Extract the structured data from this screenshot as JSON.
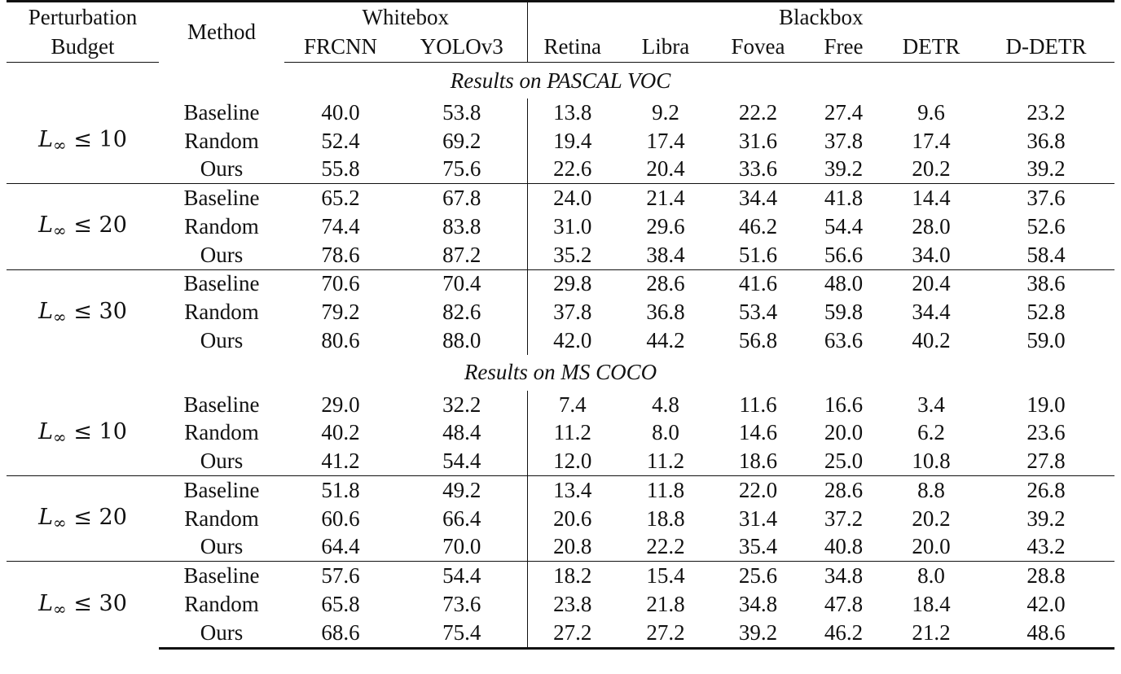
{
  "header": {
    "budget_line1": "Perturbation",
    "budget_line2": "Budget",
    "method": "Method",
    "whitebox": "Whitebox",
    "blackbox": "Blackbox",
    "columns": [
      "FRCNN",
      "YOLOv3",
      "Retina",
      "Libra",
      "Fovea",
      "Free",
      "DETR",
      "D-DETR"
    ]
  },
  "sections": [
    {
      "title": "Results on PASCAL VOC",
      "groups": [
        {
          "budget": "10",
          "rows": [
            {
              "method": "Baseline",
              "values": [
                "40.0",
                "53.8",
                "13.8",
                "9.2",
                "22.2",
                "27.4",
                "9.6",
                "23.2"
              ],
              "bold": [
                false,
                false,
                false,
                false,
                false,
                false,
                false,
                false
              ]
            },
            {
              "method": "Random",
              "values": [
                "52.4",
                "69.2",
                "19.4",
                "17.4",
                "31.6",
                "37.8",
                "17.4",
                "36.8"
              ],
              "bold": [
                false,
                false,
                false,
                false,
                false,
                false,
                false,
                false
              ]
            },
            {
              "method": "Ours",
              "values": [
                "55.8",
                "75.6",
                "22.6",
                "20.4",
                "33.6",
                "39.2",
                "20.2",
                "39.2"
              ],
              "bold": [
                true,
                true,
                true,
                true,
                true,
                true,
                true,
                true
              ]
            }
          ]
        },
        {
          "budget": "20",
          "rows": [
            {
              "method": "Baseline",
              "values": [
                "65.2",
                "67.8",
                "24.0",
                "21.4",
                "34.4",
                "41.8",
                "14.4",
                "37.6"
              ],
              "bold": [
                false,
                false,
                false,
                false,
                false,
                false,
                false,
                false
              ]
            },
            {
              "method": "Random",
              "values": [
                "74.4",
                "83.8",
                "31.0",
                "29.6",
                "46.2",
                "54.4",
                "28.0",
                "52.6"
              ],
              "bold": [
                false,
                false,
                false,
                false,
                false,
                false,
                false,
                false
              ]
            },
            {
              "method": "Ours",
              "values": [
                "78.6",
                "87.2",
                "35.2",
                "38.4",
                "51.6",
                "56.6",
                "34.0",
                "58.4"
              ],
              "bold": [
                true,
                true,
                true,
                true,
                true,
                true,
                true,
                true
              ]
            }
          ]
        },
        {
          "budget": "30",
          "rows": [
            {
              "method": "Baseline",
              "values": [
                "70.6",
                "70.4",
                "29.8",
                "28.6",
                "41.6",
                "48.0",
                "20.4",
                "38.6"
              ],
              "bold": [
                false,
                false,
                false,
                false,
                false,
                false,
                false,
                false
              ]
            },
            {
              "method": "Random",
              "values": [
                "79.2",
                "82.6",
                "37.8",
                "36.8",
                "53.4",
                "59.8",
                "34.4",
                "52.8"
              ],
              "bold": [
                false,
                false,
                false,
                false,
                false,
                false,
                false,
                false
              ]
            },
            {
              "method": "Ours",
              "values": [
                "80.6",
                "88.0",
                "42.0",
                "44.2",
                "56.8",
                "63.6",
                "40.2",
                "59.0"
              ],
              "bold": [
                true,
                true,
                true,
                true,
                true,
                true,
                true,
                true
              ]
            }
          ]
        }
      ]
    },
    {
      "title": "Results on MS COCO",
      "groups": [
        {
          "budget": "10",
          "rows": [
            {
              "method": "Baseline",
              "values": [
                "29.0",
                "32.2",
                "7.4",
                "4.8",
                "11.6",
                "16.6",
                "3.4",
                "19.0"
              ],
              "bold": [
                false,
                false,
                false,
                false,
                false,
                false,
                false,
                false
              ]
            },
            {
              "method": "Random",
              "values": [
                "40.2",
                "48.4",
                "11.2",
                "8.0",
                "14.6",
                "20.0",
                "6.2",
                "23.6"
              ],
              "bold": [
                false,
                false,
                false,
                false,
                false,
                false,
                false,
                false
              ]
            },
            {
              "method": "Ours",
              "values": [
                "41.2",
                "54.4",
                "12.0",
                "11.2",
                "18.6",
                "25.0",
                "10.8",
                "27.8"
              ],
              "bold": [
                true,
                true,
                true,
                true,
                true,
                true,
                true,
                true
              ]
            }
          ]
        },
        {
          "budget": "20",
          "rows": [
            {
              "method": "Baseline",
              "values": [
                "51.8",
                "49.2",
                "13.4",
                "11.8",
                "22.0",
                "28.6",
                "8.8",
                "26.8"
              ],
              "bold": [
                false,
                false,
                false,
                false,
                false,
                false,
                false,
                false
              ]
            },
            {
              "method": "Random",
              "values": [
                "60.6",
                "66.4",
                "20.6",
                "18.8",
                "31.4",
                "37.2",
                "20.2",
                "39.2"
              ],
              "bold": [
                false,
                false,
                false,
                false,
                false,
                false,
                true,
                false
              ]
            },
            {
              "method": "Ours",
              "values": [
                "64.4",
                "70.0",
                "20.8",
                "22.2",
                "35.4",
                "40.8",
                "20.0",
                "43.2"
              ],
              "bold": [
                true,
                true,
                true,
                true,
                true,
                true,
                false,
                true
              ]
            }
          ]
        },
        {
          "budget": "30",
          "rows": [
            {
              "method": "Baseline",
              "values": [
                "57.6",
                "54.4",
                "18.2",
                "15.4",
                "25.6",
                "34.8",
                "8.0",
                "28.8"
              ],
              "bold": [
                false,
                false,
                false,
                false,
                false,
                false,
                false,
                false
              ]
            },
            {
              "method": "Random",
              "values": [
                "65.8",
                "73.6",
                "23.8",
                "21.8",
                "34.8",
                "47.8",
                "18.4",
                "42.0"
              ],
              "bold": [
                false,
                false,
                false,
                false,
                false,
                true,
                false,
                false
              ]
            },
            {
              "method": "Ours",
              "values": [
                "68.6",
                "75.4",
                "27.2",
                "27.2",
                "39.2",
                "46.2",
                "21.2",
                "48.6"
              ],
              "bold": [
                true,
                true,
                true,
                true,
                true,
                false,
                true,
                true
              ]
            }
          ]
        }
      ]
    }
  ]
}
